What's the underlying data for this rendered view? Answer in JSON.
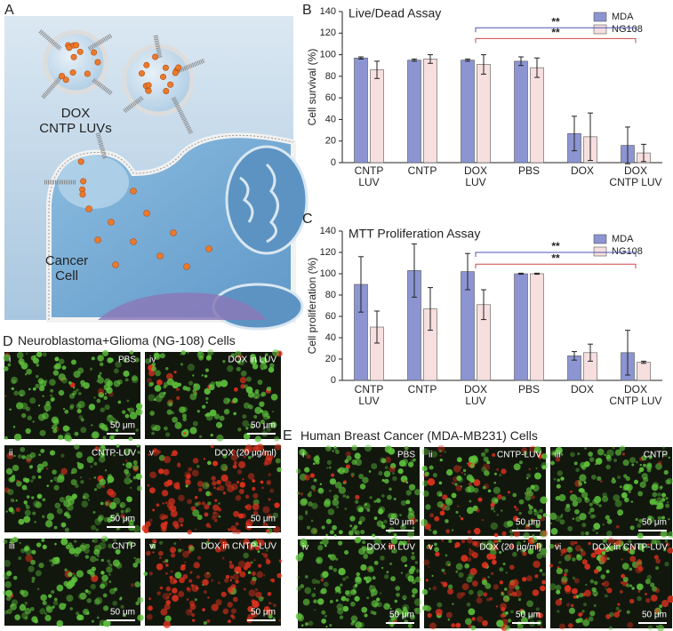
{
  "panel_labels": [
    "A",
    "B",
    "C",
    "D",
    "E"
  ],
  "panel_a": {
    "vesicle_label": "DOX\nCNTP LUVs",
    "cell_label": "Cancer\nCell"
  },
  "chart_data": [
    {
      "type": "bar",
      "title": "Live/Dead Assay",
      "ylabel": "Cell survival (%)",
      "categories": [
        "CNTP\nLUV",
        "CNTP",
        "DOX\nLUV",
        "PBS",
        "DOX",
        "DOX\nCNTP LUV"
      ],
      "series": [
        {
          "name": "MDA",
          "color": "#8c95d2",
          "values": [
            97,
            95,
            95,
            94,
            27,
            16
          ],
          "errors": [
            1,
            1,
            1,
            4,
            16,
            17
          ]
        },
        {
          "name": "NG108",
          "color": "#f7dfdf",
          "values": [
            86,
            96,
            91,
            88,
            24,
            9
          ],
          "errors": [
            8,
            4,
            9,
            9,
            22,
            8
          ]
        }
      ],
      "ylim": [
        0,
        140
      ],
      "yticks": [
        0,
        20,
        40,
        60,
        80,
        100,
        120,
        140
      ],
      "annotations": [
        {
          "text": "**",
          "compare": [
            2,
            5
          ],
          "color": "#4a55b5"
        },
        {
          "text": "**",
          "compare": [
            2,
            5
          ],
          "color": "#d04848"
        }
      ]
    },
    {
      "type": "bar",
      "title": "MTT Proliferation Assay",
      "ylabel": "Cell proliferation (%)",
      "categories": [
        "CNTP\nLUV",
        "CNTP",
        "DOX\nLUV",
        "PBS",
        "DOX",
        "DOX\nCNTP LUV"
      ],
      "series": [
        {
          "name": "MDA",
          "color": "#8c95d2",
          "values": [
            90,
            103,
            102,
            100,
            23,
            26
          ],
          "errors": [
            26,
            25,
            17,
            0.5,
            4,
            21
          ]
        },
        {
          "name": "NG108",
          "color": "#f7dfdf",
          "values": [
            50,
            67,
            71,
            100,
            26,
            17
          ],
          "errors": [
            15,
            20,
            14,
            0.5,
            8,
            1
          ]
        }
      ],
      "ylim": [
        0,
        140
      ],
      "yticks": [
        0,
        20,
        40,
        60,
        80,
        100,
        120,
        140
      ],
      "annotations": [
        {
          "text": "**",
          "compare": [
            2,
            5
          ],
          "color": "#4a55b5"
        },
        {
          "text": "**",
          "compare": [
            2,
            5
          ],
          "color": "#d04848"
        }
      ]
    }
  ],
  "panel_d": {
    "title": "Neuroblastoma+Glioma (NG-108) Cells",
    "images": [
      {
        "index": "i",
        "label": "PBS",
        "scale": "50 μm"
      },
      {
        "index": "ii",
        "label": "CNTP-LUV",
        "scale": "50 μm"
      },
      {
        "index": "iii",
        "label": "CNTP",
        "scale": "50 μm"
      },
      {
        "index": "iv",
        "label": "DOX in LUV",
        "scale": "50 μm"
      },
      {
        "index": "v",
        "label": "DOX (20 μg/ml)",
        "scale": "50 μm"
      },
      {
        "index": "vi",
        "label": "DOX in CNTP-LUV",
        "scale": "50 μm"
      }
    ]
  },
  "panel_e": {
    "title": "Human Breast Cancer (MDA-MB231) Cells",
    "images": [
      {
        "index": "i",
        "label": "PBS",
        "scale": "50 μm"
      },
      {
        "index": "ii",
        "label": "CNTP-LUV",
        "scale": "50 μm"
      },
      {
        "index": "iii",
        "label": "CNTP",
        "scale": "50 μm"
      },
      {
        "index": "iv",
        "label": "DOX in LUV",
        "scale": "50 μm"
      },
      {
        "index": "v",
        "label": "DOX (20 μg/ml)",
        "scale": "50 μm"
      },
      {
        "index": "vi",
        "label": "DOX in CNTP-LUV",
        "scale": "50 μm"
      }
    ]
  }
}
